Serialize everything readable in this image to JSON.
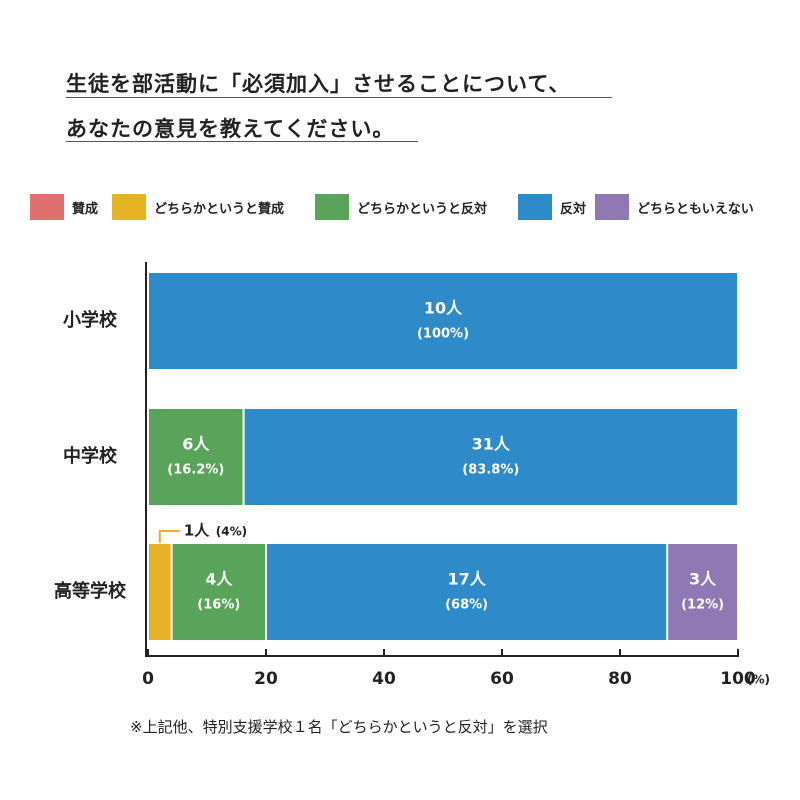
{
  "header": {
    "line1": "生徒を部活動に「必須加入」させることについて、",
    "line2": "あなたの意見を教えてください。"
  },
  "legend": {
    "items": [
      {
        "label": "賛成",
        "color": "#e07070",
        "icon": "legend-swatch"
      },
      {
        "label": "どちらかというと賛成",
        "color": "#e6b325",
        "icon": "legend-swatch"
      },
      {
        "label": "どちらかというと反対",
        "color": "#5aa35a",
        "icon": "legend-swatch"
      },
      {
        "label": "反対",
        "color": "#2f8ac9",
        "icon": "legend-swatch"
      },
      {
        "label": "どちらともいえない",
        "color": "#8f78b3",
        "icon": "legend-swatch"
      }
    ]
  },
  "chart_data": {
    "type": "bar",
    "orientation": "horizontal",
    "stacked": true,
    "categories": [
      "小学校",
      "中学校",
      "高等学校"
    ],
    "series": [
      {
        "name": "賛成",
        "color": "#e07070",
        "values": [
          0,
          0,
          0
        ],
        "labels": [
          "",
          "",
          ""
        ],
        "pct_labels": [
          "",
          "",
          ""
        ]
      },
      {
        "name": "どちらかというと賛成",
        "color": "#e6b325",
        "values": [
          0,
          0,
          4
        ],
        "labels": [
          "",
          "",
          ""
        ],
        "pct_labels": [
          "",
          "",
          ""
        ]
      },
      {
        "name": "どちらかというと反対",
        "color": "#5aa35a",
        "values": [
          0,
          16.2,
          16
        ],
        "labels": [
          "",
          "6人",
          "4人"
        ],
        "pct_labels": [
          "",
          "(16.2%)",
          "(16%)"
        ]
      },
      {
        "name": "反対",
        "color": "#2f8ac9",
        "values": [
          100,
          83.8,
          68
        ],
        "labels": [
          "10人",
          "31人",
          "17人"
        ],
        "pct_labels": [
          "(100%)",
          "(83.8%)",
          "(68%)"
        ]
      },
      {
        "name": "どちらともいえない",
        "color": "#8f78b3",
        "values": [
          0,
          0,
          12
        ],
        "labels": [
          "",
          "",
          "3人"
        ],
        "pct_labels": [
          "",
          "",
          "(12%)"
        ]
      }
    ],
    "callout": {
      "category_index": 2,
      "series_index": 1,
      "count": "1人",
      "pct": "(4%)"
    },
    "x_ticks": [
      "0",
      "20",
      "40",
      "60",
      "80",
      "100"
    ],
    "x_unit": "(%)",
    "xlim": [
      0,
      100
    ],
    "grid": false
  },
  "footnote": "※上記他、特別支援学校１名「どちらかというと反対」を選択"
}
